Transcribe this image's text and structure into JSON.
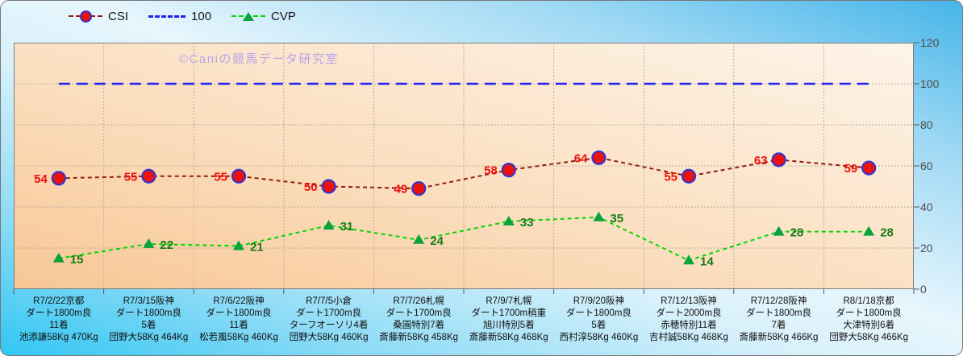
{
  "legend": {
    "items": [
      {
        "label": "CSI"
      },
      {
        "label": "100"
      },
      {
        "label": "CVP"
      }
    ]
  },
  "watermark": "©Caniの競馬データ研究室",
  "colors": {
    "csi_line": "#8e1f12",
    "csi_marker_fill": "#ea120b",
    "csi_marker_stroke": "#3434cf",
    "csi_label": "#f20d0d",
    "ref_line": "#2222ee",
    "cvp_line": "#06d506",
    "cvp_marker_fill": "#0aa23c",
    "cvp_label": "#1a7a14",
    "plot_bg_light": "#fdf4e9",
    "plot_bg_dark": "#f8c795",
    "outer_blue": "#46b5e9",
    "outer_cyan": "#31c6f3",
    "gridline": "#b9aca0"
  },
  "chart_data": {
    "type": "line",
    "title": "",
    "legend_position": "top",
    "grid": true,
    "y_axis": {
      "min": 0,
      "max": 120,
      "step": 20,
      "side": "right",
      "ticks": [
        0,
        20,
        40,
        60,
        80,
        100,
        120
      ]
    },
    "categories": [
      [
        "R7/2/22京都",
        "ダート1800m良",
        "11着",
        "池添謙58Kg 470Kg"
      ],
      [
        "R7/3/15阪神",
        "ダート1800m良",
        "5着",
        "団野大58Kg 464Kg"
      ],
      [
        "R7/6/22阪神",
        "ダート1800m良",
        "11着",
        "松若風58Kg 460Kg"
      ],
      [
        "R7/7/5小倉",
        "ダート1700m良",
        "ターフオーソリ4着",
        "団野大58Kg 460Kg"
      ],
      [
        "R7/7/26札幌",
        "ダート1700m良",
        "桑園特別7着",
        "斎藤新58Kg 458Kg"
      ],
      [
        "R7/9/7札幌",
        "ダート1700m稍重",
        "旭川特別5着",
        "斎藤新58Kg 468Kg"
      ],
      [
        "R7/9/20阪神",
        "ダート1800m良",
        "5着",
        "西村淳58Kg 460Kg"
      ],
      [
        "R7/12/13阪神",
        "ダート2000m良",
        "赤穂特別11着",
        "吉村誠58Kg 468Kg"
      ],
      [
        "R7/12/28阪神",
        "ダート1800m良",
        "7着",
        "斎藤新58Kg 466Kg"
      ],
      [
        "R8/1/18京都",
        "ダート1800m良",
        "大津特別6着",
        "団野大58Kg 466Kg"
      ]
    ],
    "series": [
      {
        "name": "CSI",
        "marker": "circle",
        "label_side": "left",
        "values": [
          54,
          55,
          55,
          50,
          49,
          58,
          64,
          55,
          63,
          59
        ]
      },
      {
        "name": "100",
        "marker": "none",
        "values": [
          100,
          100,
          100,
          100,
          100,
          100,
          100,
          100,
          100,
          100
        ]
      },
      {
        "name": "CVP",
        "marker": "triangle",
        "label_side": "right",
        "values": [
          15,
          22,
          21,
          31,
          24,
          33,
          35,
          14,
          28,
          28
        ]
      }
    ]
  }
}
